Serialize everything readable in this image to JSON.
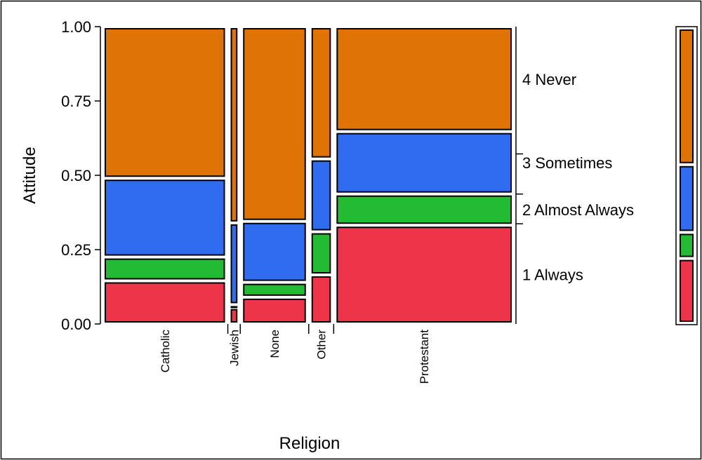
{
  "chart_data": {
    "type": "mosaic",
    "xlabel": "Religion",
    "ylabel": "Attitude",
    "ylim": [
      0,
      1
    ],
    "y_ticks": [
      "0.00",
      "0.25",
      "0.50",
      "0.75",
      "1.00"
    ],
    "y_tick_values": [
      0,
      0.25,
      0.5,
      0.75,
      1
    ],
    "categories": [
      "Catholic",
      "Jewish",
      "None",
      "Other",
      "Protestant"
    ],
    "column_shares": [
      0.311,
      0.021,
      0.164,
      0.053,
      0.451
    ],
    "series": [
      {
        "name": "1 Always",
        "color": "#ee3448",
        "values": [
          0.145,
          0.055,
          0.09,
          0.165,
          0.332
        ]
      },
      {
        "name": "2 Almost Always",
        "color": "#22bb33",
        "values": [
          0.08,
          0.01,
          0.05,
          0.145,
          0.105
        ]
      },
      {
        "name": "3 Sometimes",
        "color": "#2f6cf0",
        "values": [
          0.265,
          0.275,
          0.205,
          0.245,
          0.21
        ]
      },
      {
        "name": "4 Never",
        "color": "#e07306",
        "values": [
          0.51,
          0.66,
          0.655,
          0.445,
          0.353
        ]
      }
    ],
    "legend_position": "right"
  }
}
